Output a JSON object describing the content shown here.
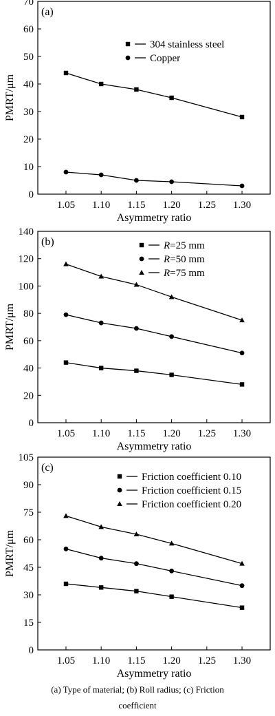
{
  "chart_data": [
    {
      "type": "line",
      "panel_label": "(a)",
      "xlabel": "Asymmetry ratio",
      "ylabel": "PMRT/μm",
      "ylim": [
        0,
        70
      ],
      "yticks": [
        "0",
        "10",
        "20",
        "30",
        "40",
        "50",
        "60",
        "70"
      ],
      "xlim": [
        1.05,
        1.3
      ],
      "xticks": [
        "1.05",
        "1.10",
        "1.15",
        "1.20",
        "1.25",
        "1.30"
      ],
      "x": [
        1.05,
        1.1,
        1.15,
        1.2,
        1.3
      ],
      "legend_position": "top-right",
      "series": [
        {
          "name": "304 stainless steel",
          "marker": "square",
          "values": [
            44,
            40,
            38,
            35,
            28
          ]
        },
        {
          "name": "Copper",
          "marker": "circle",
          "values": [
            8,
            7,
            5,
            4.5,
            3
          ]
        }
      ]
    },
    {
      "type": "line",
      "panel_label": "(b)",
      "xlabel": "Asymmetry ratio",
      "ylabel": "PMRT/μm",
      "ylim": [
        0,
        140
      ],
      "yticks": [
        "0",
        "20",
        "40",
        "60",
        "80",
        "100",
        "120",
        "140"
      ],
      "xlim": [
        1.05,
        1.3
      ],
      "xticks": [
        "1.05",
        "1.10",
        "1.15",
        "1.20",
        "1.25",
        "1.30"
      ],
      "x": [
        1.05,
        1.1,
        1.15,
        1.2,
        1.3
      ],
      "legend_position": "top-right",
      "series": [
        {
          "name_italic": "R",
          "name_rest": "=25 mm",
          "marker": "square",
          "values": [
            44,
            40,
            38,
            35,
            28
          ]
        },
        {
          "name_italic": "R",
          "name_rest": "=50 mm",
          "marker": "circle",
          "values": [
            79,
            73,
            69,
            63,
            51
          ]
        },
        {
          "name_italic": "R",
          "name_rest": "=75 mm",
          "marker": "triangle",
          "values": [
            116,
            107,
            101,
            92,
            75
          ]
        }
      ]
    },
    {
      "type": "line",
      "panel_label": "(c)",
      "xlabel": "Asymmetry ratio",
      "ylabel": "PMRT/μm",
      "ylim": [
        0,
        105
      ],
      "yticks": [
        "0",
        "15",
        "30",
        "45",
        "60",
        "75",
        "90",
        "105"
      ],
      "xlim": [
        1.05,
        1.3
      ],
      "xticks": [
        "1.05",
        "1.10",
        "1.15",
        "1.20",
        "1.25",
        "1.30"
      ],
      "x": [
        1.05,
        1.1,
        1.15,
        1.2,
        1.3
      ],
      "legend_position": "top-right",
      "series": [
        {
          "name": "Friction coefficient 0.10",
          "marker": "square",
          "values": [
            36,
            34,
            32,
            29,
            23
          ]
        },
        {
          "name": "Friction coefficient 0.15",
          "marker": "circle",
          "values": [
            55,
            50,
            47,
            43,
            35
          ]
        },
        {
          "name": "Friction coefficient 0.20",
          "marker": "triangle",
          "values": [
            73,
            67,
            63,
            58,
            47
          ]
        }
      ]
    }
  ],
  "caption": {
    "line1": "(a)  Type  of  material;  (b)  Roll  radius;  (c)  Friction",
    "line2": "coefficient"
  }
}
